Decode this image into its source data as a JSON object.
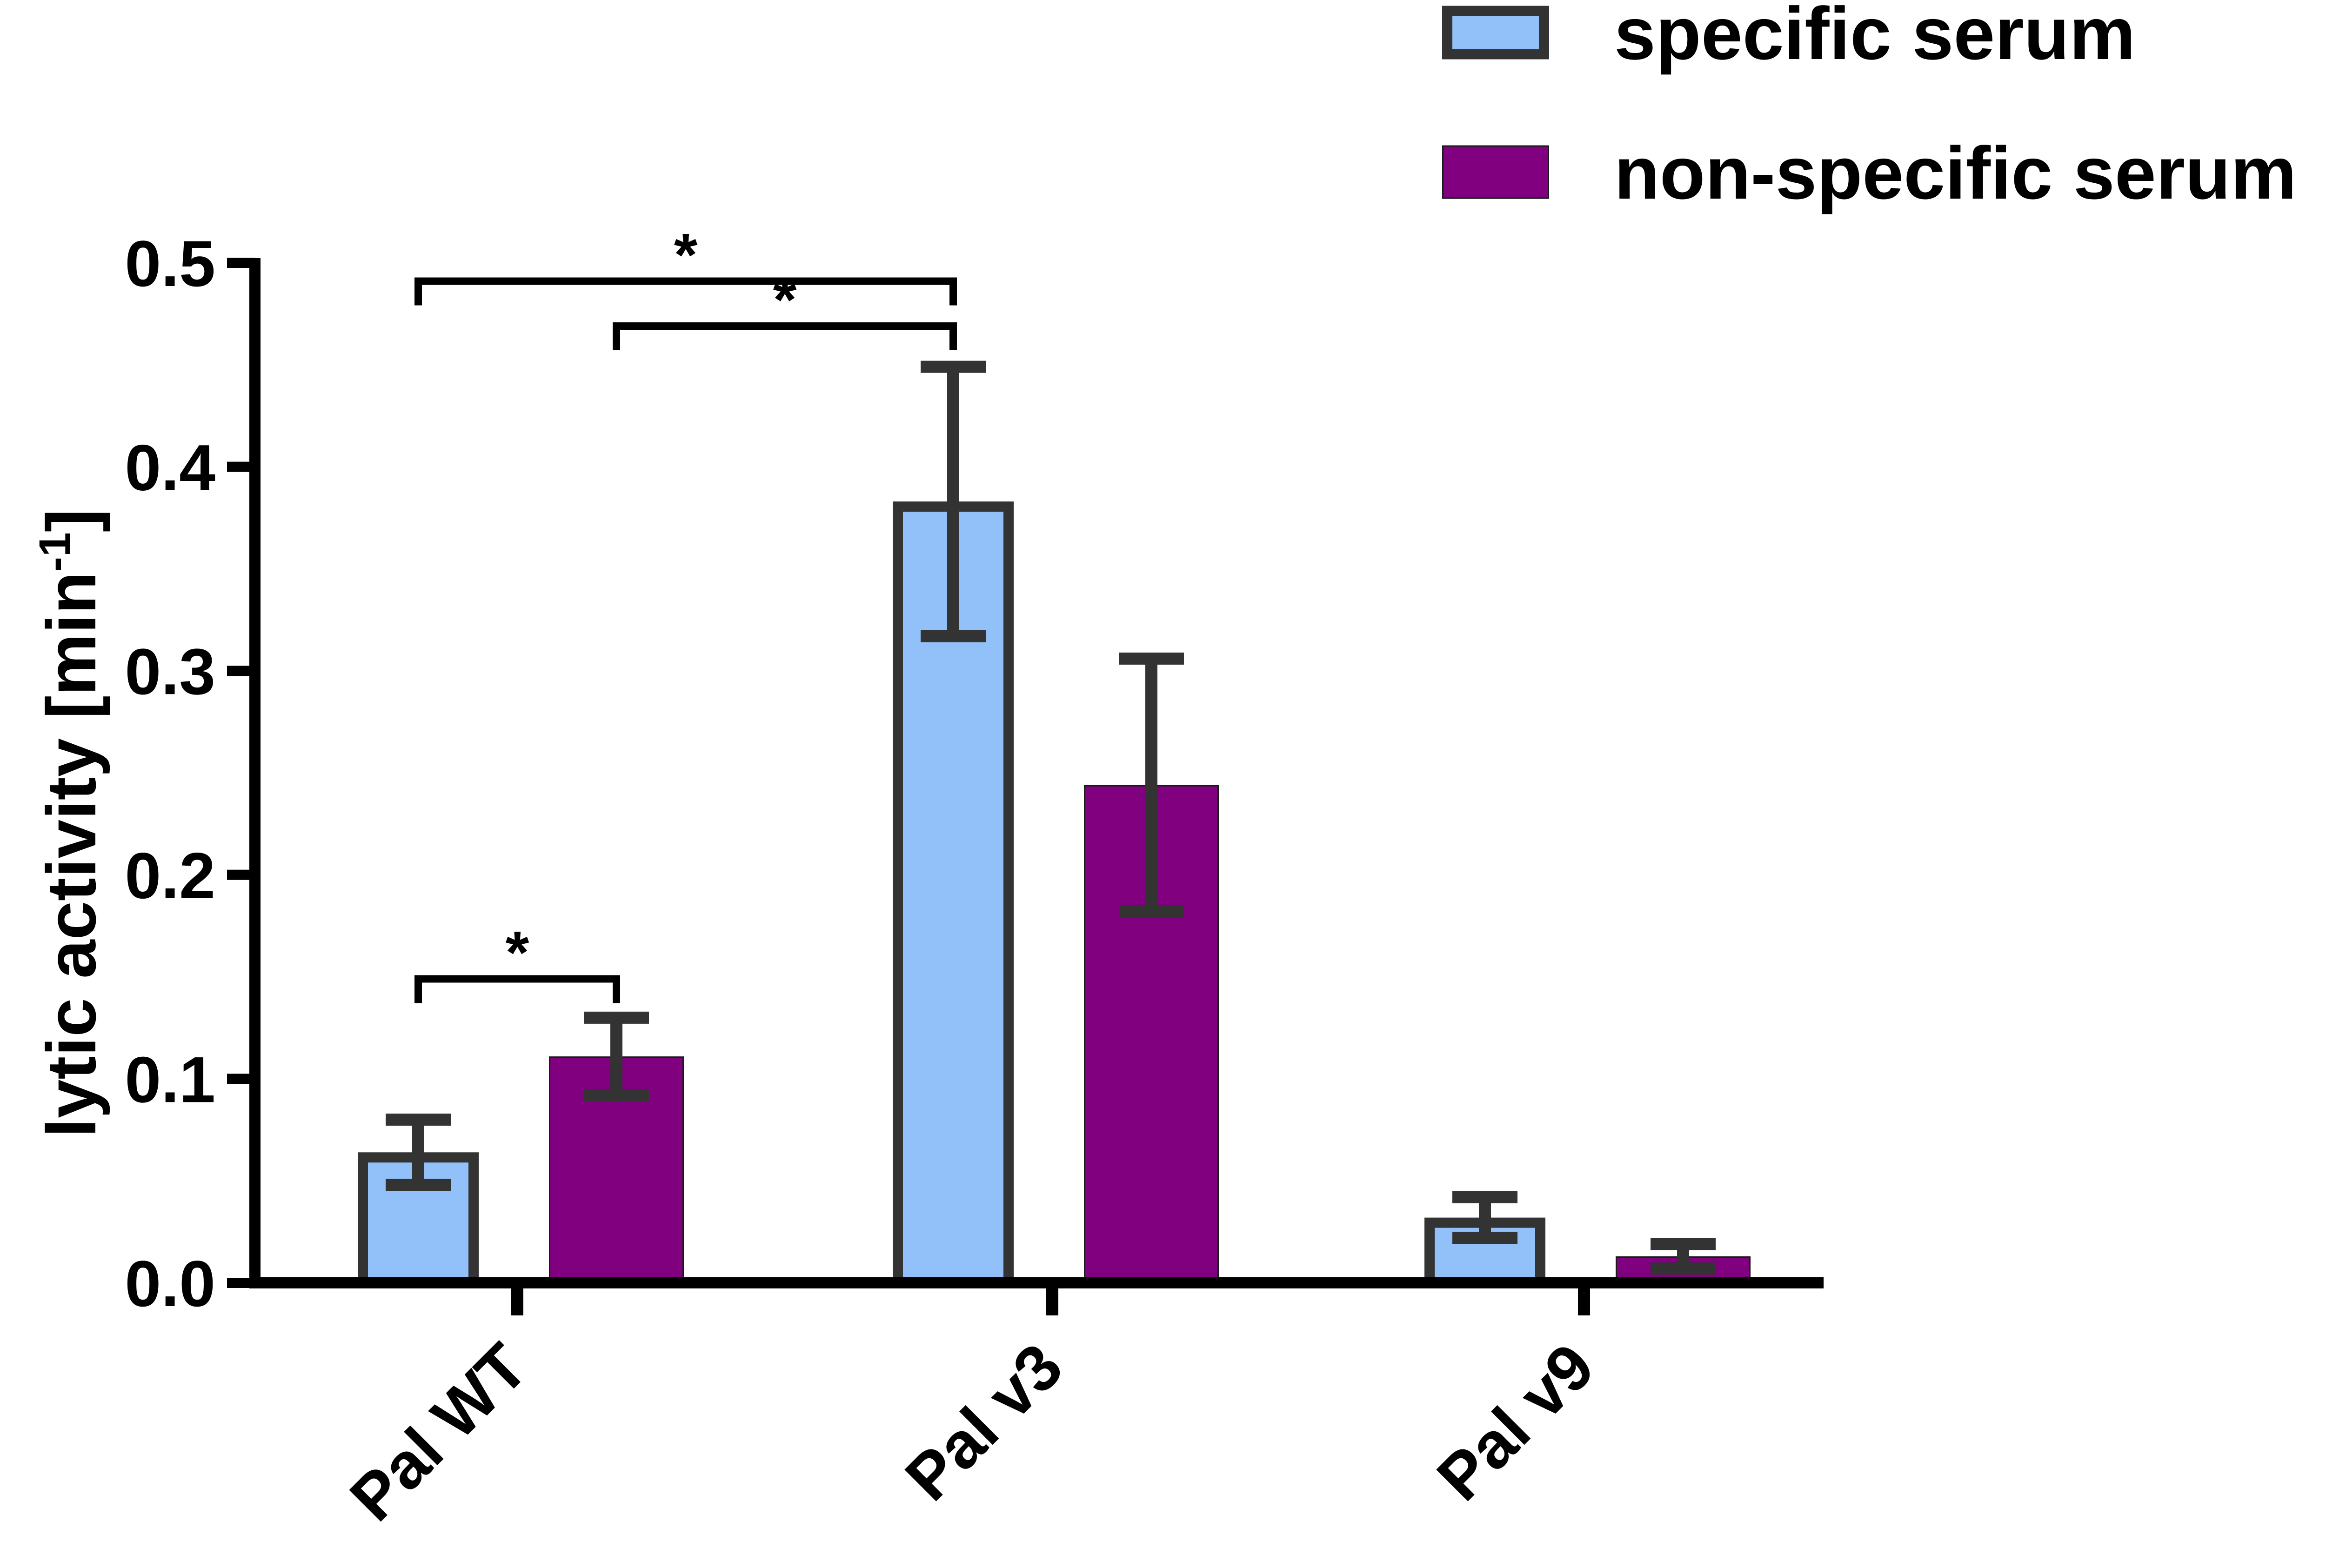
{
  "chart_data": {
    "type": "bar",
    "title": "",
    "xlabel": "",
    "ylabel": "lytic activity [min",
    "ylabel_superscript": "-1",
    "ylabel_suffix": "]",
    "ylim": [
      0,
      0.5
    ],
    "yticks": [
      "0.0",
      "0.1",
      "0.2",
      "0.3",
      "0.4",
      "0.5"
    ],
    "categories": [
      "Pal WT",
      "Pal v3",
      "Pal v9"
    ],
    "series": [
      {
        "name": "specific serum",
        "color": "#92C0F8",
        "edge_color": "#333333",
        "values": [
          0.064,
          0.383,
          0.032
        ],
        "errors": [
          0.016,
          0.066,
          0.01
        ]
      },
      {
        "name": "non-specific serum",
        "color": "#800080",
        "edge_color": "#1a1a1a",
        "values": [
          0.111,
          0.244,
          0.013
        ],
        "errors": [
          0.019,
          0.062,
          0.006
        ]
      }
    ],
    "legend_position": "top-right",
    "significance": [
      {
        "from": {
          "category": 0,
          "series": 0
        },
        "to": {
          "category": 0,
          "series": 1
        },
        "label": "*",
        "level": 0.149
      },
      {
        "from": {
          "category": 0,
          "series": 0
        },
        "to": {
          "category": 1,
          "series": 0
        },
        "label": "*",
        "level": 0.491
      },
      {
        "from": {
          "category": 0,
          "series": 1
        },
        "to": {
          "category": 1,
          "series": 0
        },
        "label": "*",
        "level": 0.469
      }
    ]
  }
}
